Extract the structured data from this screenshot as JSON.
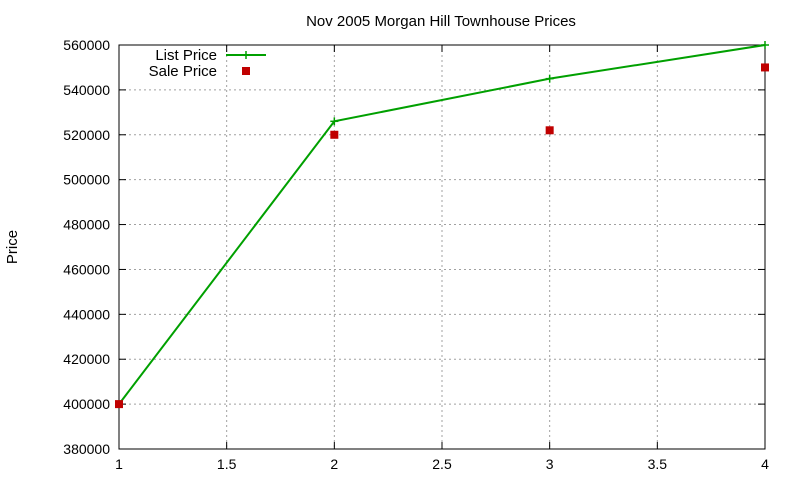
{
  "chart_data": {
    "type": "line",
    "title": "Nov 2005 Morgan Hill Townhouse Prices",
    "xlabel": "",
    "ylabel": "Price",
    "xlim": [
      1,
      4
    ],
    "ylim": [
      380000,
      560000
    ],
    "x_ticks": [
      "1",
      "1.5",
      "2",
      "2.5",
      "3",
      "3.5",
      "4"
    ],
    "x_tick_values": [
      1,
      1.5,
      2,
      2.5,
      3,
      3.5,
      4
    ],
    "y_ticks": [
      "380000",
      "400000",
      "420000",
      "440000",
      "460000",
      "480000",
      "500000",
      "520000",
      "540000",
      "560000"
    ],
    "y_tick_values": [
      380000,
      400000,
      420000,
      440000,
      460000,
      480000,
      500000,
      520000,
      540000,
      560000
    ],
    "grid": true,
    "legend_position": "top-left",
    "series": [
      {
        "name": "List Price",
        "style": "linespoints",
        "marker": "plus",
        "color": "#00a000",
        "x": [
          1,
          2,
          3,
          4
        ],
        "values": [
          400000,
          526000,
          545000,
          560000
        ]
      },
      {
        "name": "Sale Price",
        "style": "points",
        "marker": "square",
        "color": "#c00000",
        "x": [
          1,
          2,
          3,
          4
        ],
        "values": [
          400000,
          520000,
          522000,
          550000
        ]
      }
    ]
  }
}
